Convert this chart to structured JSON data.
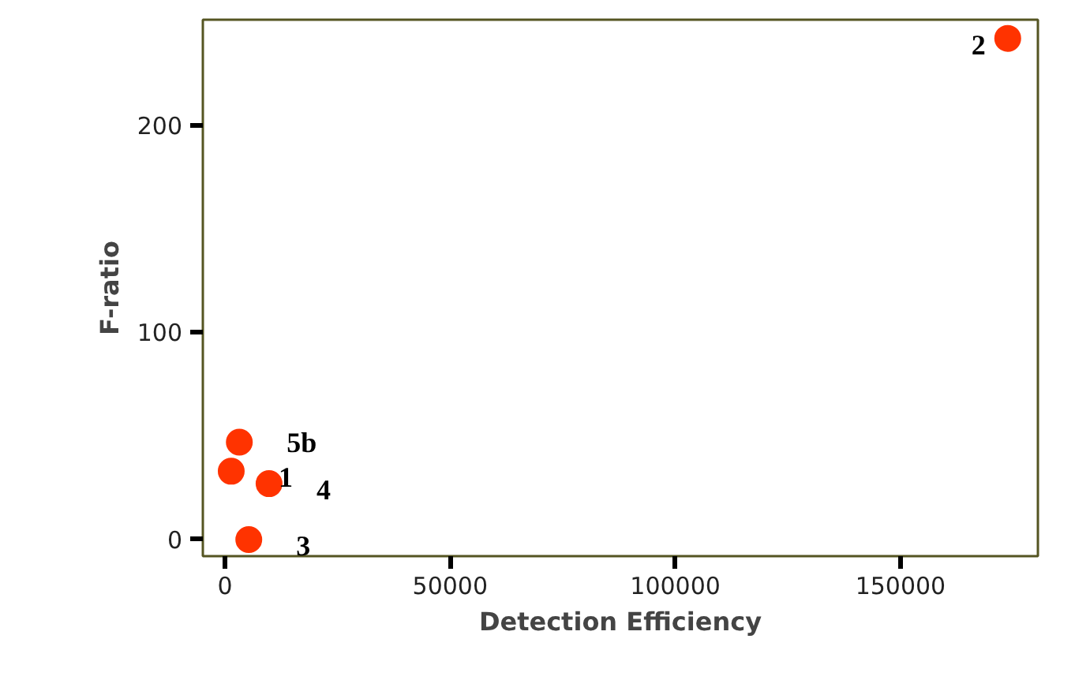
{
  "chart_data": {
    "type": "scatter",
    "xlabel": "Detection Efficiency",
    "ylabel": "F-ratio",
    "x": [
      3200,
      1400,
      9800,
      5300,
      173800
    ],
    "values": [
      47,
      33,
      27,
      0,
      242
    ],
    "color": "#ff3300",
    "marker": "circle",
    "xlim": [
      -4900,
      180500
    ],
    "ylim": [
      -8,
      251
    ],
    "xticks": [
      0,
      50000,
      100000,
      150000
    ],
    "yticks": [
      0,
      100,
      200
    ],
    "grid": false,
    "annotations": [
      {
        "text": "5b",
        "x": 3200,
        "y": 47
      },
      {
        "text": "1",
        "x": 1400,
        "y": 33
      },
      {
        "text": "4",
        "x": 9800,
        "y": 27
      },
      {
        "text": "3",
        "x": 5300,
        "y": 0
      },
      {
        "text": "2",
        "x": 173800,
        "y": 242
      }
    ]
  }
}
